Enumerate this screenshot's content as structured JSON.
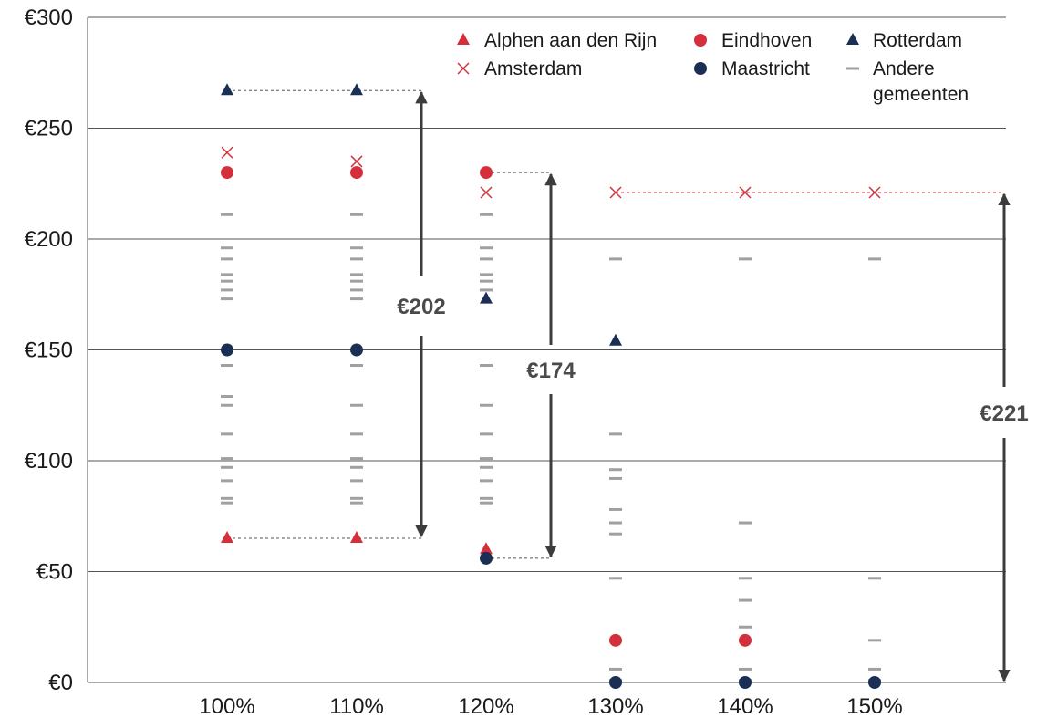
{
  "chart_data": {
    "type": "scatter",
    "categories": [
      "100%",
      "110%",
      "120%",
      "130%",
      "140%",
      "150%"
    ],
    "y_ticks": [
      "€0",
      "€50",
      "€100",
      "€150",
      "€200",
      "€250",
      "€300"
    ],
    "ylim": [
      0,
      300
    ],
    "grid": "horizontal",
    "legend_position": "top-right",
    "legend": [
      {
        "key": "alphen",
        "label": "Alphen aan den Rijn"
      },
      {
        "key": "eindhoven",
        "label": "Eindhoven"
      },
      {
        "key": "rotterdam",
        "label": "Rotterdam"
      },
      {
        "key": "amsterdam",
        "label": "Amsterdam"
      },
      {
        "key": "maastricht",
        "label": "Maastricht"
      },
      {
        "key": "andere",
        "label": "Andere gemeenten"
      }
    ],
    "colors": {
      "red": "#d4303c",
      "navy": "#1b2f55",
      "gray": "#a0a0a0",
      "grid": "#555555",
      "arrow": "#3c3c3c"
    },
    "series": [
      {
        "name": "Alphen aan den Rijn",
        "key": "alphen",
        "marker": "triangle",
        "color": "red",
        "values": [
          65,
          65,
          60,
          null,
          null,
          null
        ]
      },
      {
        "name": "Amsterdam",
        "key": "amsterdam",
        "marker": "x",
        "color": "red",
        "values": [
          239,
          235,
          221,
          221,
          221,
          221
        ]
      },
      {
        "name": "Eindhoven",
        "key": "eindhoven",
        "marker": "circle",
        "color": "red",
        "values": [
          230,
          230,
          230,
          19,
          19,
          null
        ]
      },
      {
        "name": "Maastricht",
        "key": "maastricht",
        "marker": "circle",
        "color": "navy",
        "values": [
          150,
          150,
          56,
          0,
          0,
          0
        ]
      },
      {
        "name": "Rotterdam",
        "key": "rotterdam",
        "marker": "triangle",
        "color": "navy",
        "values": [
          267,
          267,
          173,
          154,
          null,
          null
        ]
      }
    ],
    "andere_gemeenten": [
      [
        211,
        196,
        191,
        184,
        181,
        177,
        173,
        143,
        129,
        125,
        112,
        101,
        97,
        91,
        83,
        81
      ],
      [
        211,
        196,
        191,
        184,
        181,
        177,
        173,
        143,
        125,
        112,
        101,
        97,
        91,
        83,
        81
      ],
      [
        211,
        196,
        191,
        184,
        181,
        177,
        143,
        125,
        112,
        101,
        97,
        91,
        83,
        81
      ],
      [
        191,
        112,
        96,
        92,
        78,
        72,
        67,
        47,
        19,
        6,
        1
      ],
      [
        191,
        72,
        47,
        37,
        25,
        19,
        6,
        1
      ],
      [
        191,
        47,
        19,
        6,
        1
      ]
    ],
    "ranges": [
      {
        "label": "€202",
        "low": 65,
        "high": 267,
        "from_category": 1
      },
      {
        "label": "€174",
        "low": 56,
        "high": 230,
        "from_category": 2
      },
      {
        "label": "€221",
        "low": 0,
        "high": 221,
        "from_category": 5
      }
    ]
  }
}
